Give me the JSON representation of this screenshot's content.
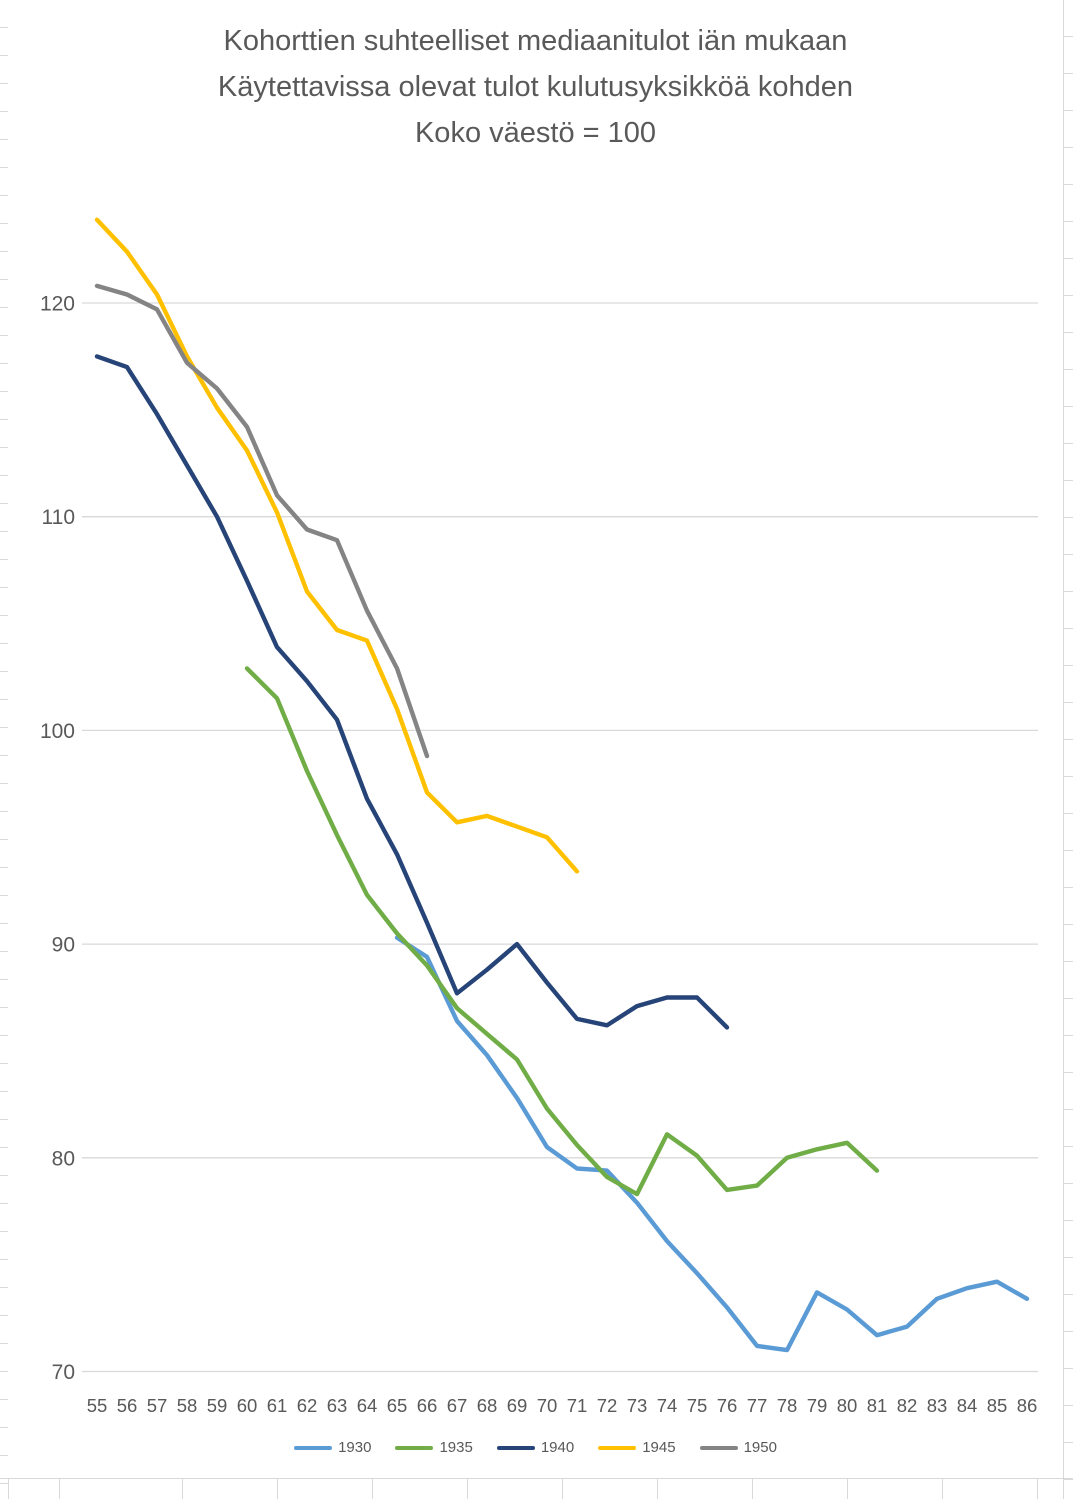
{
  "chart_data": {
    "type": "line",
    "title_lines": [
      "Kohorttien suhteelliset mediaanitulot iän mukaan",
      "Käytettavissa olevat tulot kulutusyksikköä kohden",
      "Koko väestö = 100"
    ],
    "xlabel": "",
    "ylabel": "",
    "x_ticks": [
      55,
      56,
      57,
      58,
      59,
      60,
      61,
      62,
      63,
      64,
      65,
      66,
      67,
      68,
      69,
      70,
      71,
      72,
      73,
      74,
      75,
      76,
      77,
      78,
      79,
      80,
      81,
      82,
      83,
      84,
      85,
      86
    ],
    "y_ticks": [
      120,
      110,
      100,
      90,
      80,
      70
    ],
    "ylim": [
      68,
      126
    ],
    "grid": true,
    "legend_position": "bottom",
    "series": [
      {
        "name": "1930",
        "color": "#5B9BD5",
        "start_age": 65,
        "values": [
          90.3,
          89.4,
          86.4,
          84.8,
          82.8,
          80.5,
          79.5,
          79.4,
          77.9,
          76.1,
          74.6,
          73.0,
          71.2,
          71.0,
          73.7,
          72.9,
          71.7,
          72.1,
          73.4,
          73.9,
          74.2,
          73.4
        ]
      },
      {
        "name": "1935",
        "color": "#70AD47",
        "start_age": 60,
        "values": [
          102.9,
          101.5,
          98.1,
          95.1,
          92.3,
          90.5,
          89.0,
          87.0,
          85.8,
          84.6,
          82.3,
          80.6,
          79.1,
          78.3,
          81.1,
          80.1,
          78.5,
          78.7,
          80.0,
          80.4,
          80.7,
          79.4
        ]
      },
      {
        "name": "1940",
        "color": "#264478",
        "start_age": 55,
        "values": [
          117.5,
          117.0,
          114.8,
          112.4,
          110.0,
          107.0,
          103.9,
          102.3,
          100.5,
          96.8,
          94.2,
          91.0,
          87.7,
          88.8,
          90.0,
          88.2,
          86.5,
          86.2,
          87.1,
          87.5,
          87.5,
          86.1
        ]
      },
      {
        "name": "1945",
        "color": "#FFC000",
        "start_age": 55,
        "values": [
          123.9,
          122.4,
          120.4,
          117.5,
          115.1,
          113.1,
          110.2,
          106.5,
          104.7,
          104.2,
          101.0,
          97.1,
          95.7,
          96.0,
          95.5,
          95.0,
          93.4
        ]
      },
      {
        "name": "1950",
        "color": "#848484",
        "start_age": 55,
        "values": [
          120.8,
          120.4,
          119.7,
          117.2,
          116.0,
          114.2,
          111.0,
          109.4,
          108.9,
          105.6,
          102.9,
          98.8
        ]
      }
    ]
  },
  "colors": {
    "title_text": "#595959",
    "axis_text": "#595959",
    "gridline": "#d9d9d9",
    "sheet_line": "#d9d9d9",
    "chart_background": "#ffffff"
  }
}
